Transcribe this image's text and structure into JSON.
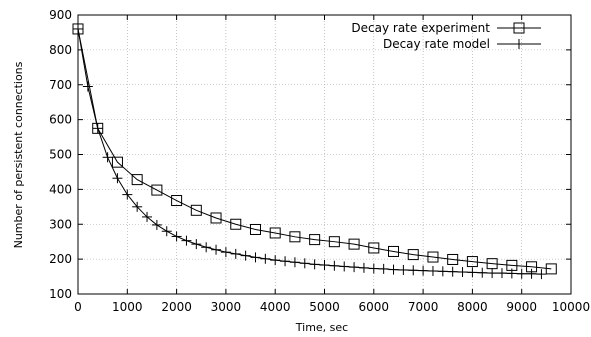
{
  "chart_data": {
    "type": "line",
    "title": "",
    "xlabel": "Time, sec",
    "ylabel": "Number of persistent connections",
    "xlim": [
      0,
      10000
    ],
    "ylim": [
      100,
      900
    ],
    "xticks": [
      0,
      1000,
      2000,
      3000,
      4000,
      5000,
      6000,
      7000,
      8000,
      9000,
      10000
    ],
    "yticks": [
      100,
      200,
      300,
      400,
      500,
      600,
      700,
      800,
      900
    ],
    "grid": true,
    "legend_position": "top-right",
    "series": [
      {
        "name": "Decay rate experiment",
        "marker": "square",
        "color": "#000000",
        "points": [
          [
            0,
            860
          ],
          [
            400,
            575
          ],
          [
            800,
            478
          ],
          [
            1200,
            428
          ],
          [
            1600,
            398
          ],
          [
            2000,
            368
          ],
          [
            2400,
            340
          ],
          [
            2800,
            318
          ],
          [
            3200,
            300
          ],
          [
            3600,
            285
          ],
          [
            4000,
            275
          ],
          [
            4400,
            264
          ],
          [
            4800,
            256
          ],
          [
            5200,
            250
          ],
          [
            5600,
            243
          ],
          [
            6000,
            232
          ],
          [
            6400,
            222
          ],
          [
            6800,
            213
          ],
          [
            7200,
            206
          ],
          [
            7600,
            199
          ],
          [
            8000,
            193
          ],
          [
            8400,
            187
          ],
          [
            8800,
            182
          ],
          [
            9200,
            178
          ],
          [
            9600,
            172
          ]
        ]
      },
      {
        "name": "Decay rate model",
        "marker": "plus",
        "color": "#000000",
        "points": [
          [
            0,
            860
          ],
          [
            200,
            695
          ],
          [
            400,
            575
          ],
          [
            600,
            492
          ],
          [
            800,
            432
          ],
          [
            1000,
            385
          ],
          [
            1200,
            350
          ],
          [
            1400,
            321
          ],
          [
            1600,
            298
          ],
          [
            1800,
            280
          ],
          [
            2000,
            265
          ],
          [
            2200,
            253
          ],
          [
            2400,
            243
          ],
          [
            2600,
            234
          ],
          [
            2800,
            227
          ],
          [
            3000,
            220
          ],
          [
            3200,
            215
          ],
          [
            3400,
            210
          ],
          [
            3600,
            205
          ],
          [
            3800,
            201
          ],
          [
            4000,
            197
          ],
          [
            4200,
            194
          ],
          [
            4400,
            191
          ],
          [
            4600,
            188
          ],
          [
            4800,
            185
          ],
          [
            5000,
            183
          ],
          [
            5200,
            181
          ],
          [
            5400,
            179
          ],
          [
            5600,
            177
          ],
          [
            5800,
            175
          ],
          [
            6000,
            173
          ],
          [
            6200,
            172
          ],
          [
            6400,
            170
          ],
          [
            6600,
            169
          ],
          [
            6800,
            168
          ],
          [
            7000,
            167
          ],
          [
            7200,
            166
          ],
          [
            7400,
            165
          ],
          [
            7600,
            164
          ],
          [
            7800,
            163
          ],
          [
            8000,
            162
          ],
          [
            8200,
            161
          ],
          [
            8400,
            160
          ],
          [
            8600,
            160
          ],
          [
            8800,
            159
          ],
          [
            9000,
            158
          ],
          [
            9200,
            158
          ],
          [
            9400,
            157
          ]
        ]
      }
    ]
  }
}
